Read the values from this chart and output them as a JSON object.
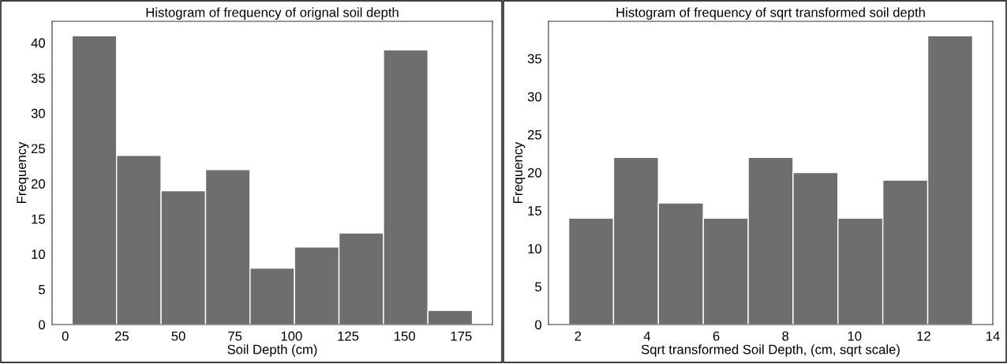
{
  "chart_data": [
    {
      "type": "histogram",
      "title": "Histogram of frequency of orignal soil depth",
      "xlabel": "Soil Depth (cm)",
      "ylabel": "Frequency",
      "color": "#6e6e6e",
      "bins": [
        3,
        22.67,
        42.33,
        62,
        81.67,
        101.33,
        121,
        140.67,
        160.33,
        180
      ],
      "values": [
        41,
        24,
        19,
        22,
        8,
        11,
        13,
        39,
        2
      ],
      "xlim": [
        -5.85,
        188.85
      ],
      "xticks": [
        0,
        25,
        50,
        75,
        100,
        125,
        150,
        175
      ],
      "ylim": [
        0,
        43.05
      ],
      "yticks": [
        0,
        5,
        10,
        15,
        20,
        25,
        30,
        35,
        40
      ],
      "grid": false
    },
    {
      "type": "histogram",
      "title": "Histogram of frequency of sqrt transformed soil depth",
      "xlabel": "Sqrt transformed Soil Depth, (cm, sqrt scale)",
      "ylabel": "Frequency",
      "color": "#6e6e6e",
      "bins": [
        1.732,
        3.03,
        4.328,
        5.627,
        6.925,
        8.223,
        9.521,
        10.819,
        12.118,
        13.416
      ],
      "values": [
        14,
        22,
        16,
        14,
        22,
        20,
        14,
        19,
        38
      ],
      "xlim": [
        1.148,
        14.0
      ],
      "xticks": [
        2,
        4,
        6,
        8,
        10,
        12,
        14
      ],
      "ylim": [
        0,
        39.9
      ],
      "yticks": [
        0,
        5,
        10,
        15,
        20,
        25,
        30,
        35
      ],
      "grid": false
    }
  ]
}
